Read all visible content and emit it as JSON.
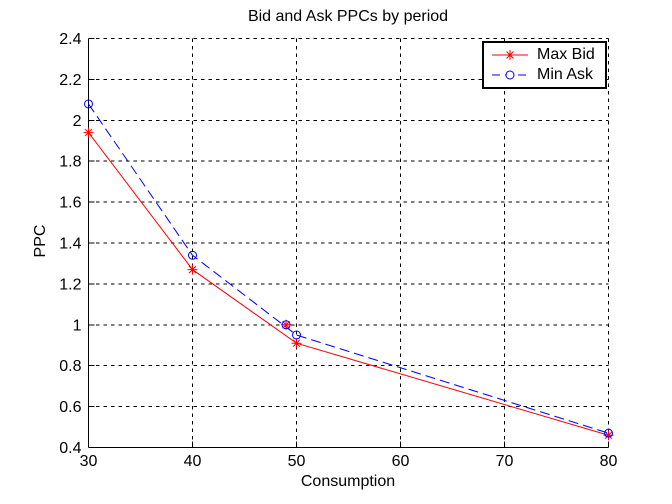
{
  "chart_data": {
    "type": "line",
    "title": "Bid and Ask PPCs by period",
    "xlabel": "Consumption",
    "ylabel": "PPC",
    "xlim": [
      30,
      80
    ],
    "ylim": [
      0.4,
      2.4
    ],
    "x_ticks": [
      30,
      40,
      50,
      60,
      70,
      80
    ],
    "x_tick_labels": [
      "30",
      "40",
      "50",
      "60",
      "70",
      "80"
    ],
    "y_ticks": [
      0.4,
      0.6,
      0.8,
      1,
      1.2,
      1.4,
      1.6,
      1.8,
      2,
      2.2,
      2.4
    ],
    "y_tick_labels": [
      "0.4",
      "0.6",
      "0.8",
      "1",
      "1.2",
      "1.4",
      "1.6",
      "1.8",
      "2",
      "2.2",
      "2.4"
    ],
    "grid": true,
    "grid_color": "#000000",
    "axis_color": "#000000",
    "background_color": "#ffffff",
    "legend_position": "top-right",
    "series": [
      {
        "name": "Max Bid",
        "color": "#ff0000",
        "line_style": "solid",
        "marker": "asterisk",
        "x": [
          30,
          40,
          50,
          80
        ],
        "y": [
          1.94,
          1.27,
          0.91,
          0.46
        ]
      },
      {
        "name": "Min Ask",
        "color": "#0000ff",
        "line_style": "dashed",
        "marker": "circle",
        "x": [
          30,
          40,
          50,
          80
        ],
        "y": [
          2.08,
          1.34,
          0.95,
          0.47
        ]
      }
    ],
    "extra_markers": [
      {
        "x": 49,
        "y": 1.0,
        "marker": "asterisk",
        "color": "#ff0000"
      },
      {
        "x": 49,
        "y": 1.0,
        "marker": "circle",
        "color": "#0000ff"
      }
    ]
  }
}
